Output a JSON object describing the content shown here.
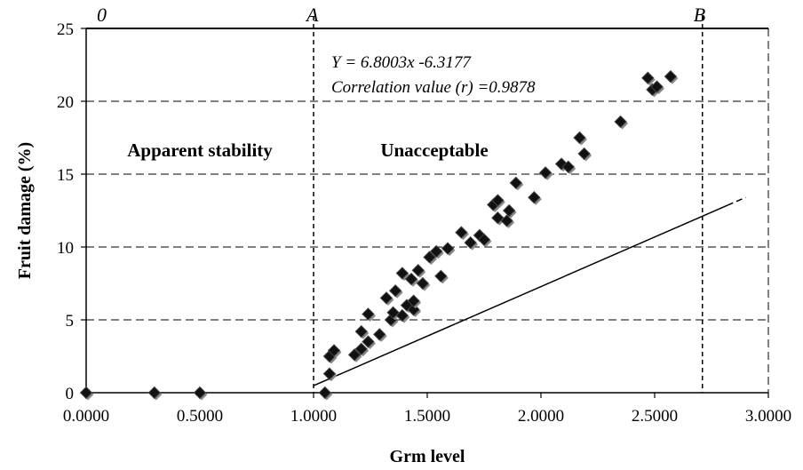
{
  "chart_data": {
    "type": "scatter",
    "xlabel": "Grm level",
    "ylabel": "Fruit damage (%)",
    "xlim": [
      0,
      3
    ],
    "ylim": [
      0,
      25
    ],
    "x_ticks": [
      0,
      0.5,
      1,
      1.5,
      2,
      2.5,
      3
    ],
    "x_tick_labels": [
      "0.0000",
      "0.5000",
      "1.0000",
      "1.5000",
      "2.0000",
      "2.5000",
      "3.0000"
    ],
    "y_ticks": [
      0,
      5,
      10,
      15,
      20,
      25
    ],
    "y_tick_labels": [
      "0",
      "5",
      "10",
      "15",
      "20",
      "25"
    ],
    "grid": "horizontal dashed",
    "points": [
      [
        0.0,
        0.0
      ],
      [
        0.3,
        0.0
      ],
      [
        0.5,
        0.0
      ],
      [
        1.05,
        0.0
      ],
      [
        1.07,
        1.3
      ],
      [
        1.07,
        2.5
      ],
      [
        1.09,
        2.9
      ],
      [
        1.18,
        2.6
      ],
      [
        1.21,
        3.0
      ],
      [
        1.21,
        4.2
      ],
      [
        1.24,
        3.5
      ],
      [
        1.24,
        5.4
      ],
      [
        1.29,
        4.0
      ],
      [
        1.32,
        6.5
      ],
      [
        1.34,
        5.0
      ],
      [
        1.35,
        5.5
      ],
      [
        1.36,
        7.0
      ],
      [
        1.39,
        5.3
      ],
      [
        1.39,
        8.2
      ],
      [
        1.41,
        6.0
      ],
      [
        1.43,
        7.8
      ],
      [
        1.44,
        5.7
      ],
      [
        1.44,
        6.3
      ],
      [
        1.46,
        8.4
      ],
      [
        1.48,
        7.5
      ],
      [
        1.51,
        9.3
      ],
      [
        1.54,
        9.7
      ],
      [
        1.56,
        8.0
      ],
      [
        1.59,
        9.9
      ],
      [
        1.65,
        11.0
      ],
      [
        1.69,
        10.3
      ],
      [
        1.73,
        10.8
      ],
      [
        1.75,
        10.5
      ],
      [
        1.79,
        12.9
      ],
      [
        1.81,
        13.2
      ],
      [
        1.81,
        12.0
      ],
      [
        1.85,
        11.8
      ],
      [
        1.86,
        12.5
      ],
      [
        1.89,
        14.4
      ],
      [
        1.97,
        13.4
      ],
      [
        2.02,
        15.1
      ],
      [
        2.09,
        15.7
      ],
      [
        2.12,
        15.5
      ],
      [
        2.17,
        17.5
      ],
      [
        2.19,
        16.4
      ],
      [
        2.35,
        18.6
      ],
      [
        2.47,
        21.6
      ],
      [
        2.49,
        20.8
      ],
      [
        2.51,
        21.0
      ],
      [
        2.57,
        21.7
      ]
    ],
    "trendline": {
      "slope": 6.8003,
      "intercept": -6.3177,
      "x_start": 1.0,
      "x_end": 2.82
    },
    "vlines": [
      {
        "x": 1.0,
        "label": "A"
      },
      {
        "x": 2.71,
        "label": "B"
      }
    ],
    "origin_label": "0",
    "regions": [
      "Apparent stability",
      "Unacceptable"
    ],
    "equation": "Y = 6.8003x -6.3177",
    "correlation": "Correlation value (r) =0.9878"
  }
}
